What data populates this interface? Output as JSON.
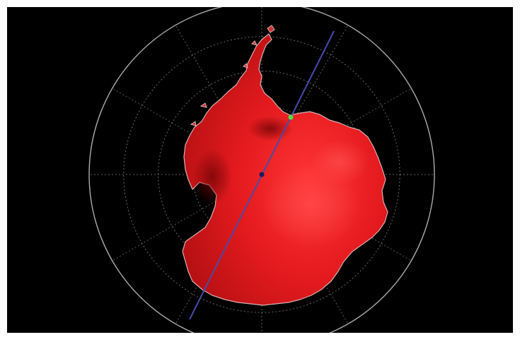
{
  "map": {
    "background_color": "#000000",
    "frame_color": "#ffffff",
    "landmass_color": "#e0161a",
    "landmass_highlight_color": "#ff3a3a",
    "landmass_shadow_color": "#8e0a0c",
    "coastline_color": "#d8b0b0",
    "grid_color": "#bdbdbd",
    "transect_color": "#4a4aa8",
    "center_marker_color": "#1a1a5a",
    "endpoint_marker_color": "#4ce04c",
    "latitude_rings": 5,
    "meridians": 12,
    "transect_angle_deg": 60
  }
}
